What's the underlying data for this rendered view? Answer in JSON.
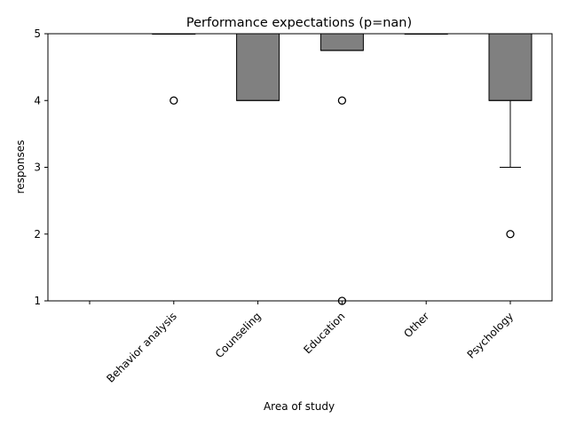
{
  "chart_data": {
    "type": "box",
    "title": "Performance expectations (p=nan)",
    "xlabel": "Area of study",
    "ylabel": "responses",
    "ylim": [
      1,
      5
    ],
    "yticks": [
      "1",
      "2",
      "3",
      "4",
      "5"
    ],
    "categories": [
      "",
      "Behavior analysis",
      "Counseling",
      "Education",
      "Other",
      "Psychology"
    ],
    "boxes": [
      null,
      {
        "q1": 5,
        "median": 5,
        "q3": 5,
        "whisker_low": 5,
        "whisker_high": 5,
        "outliers": [
          4
        ]
      },
      {
        "q1": 4,
        "median": 4,
        "q3": 5,
        "whisker_low": 4,
        "whisker_high": 5,
        "outliers": []
      },
      {
        "q1": 4.75,
        "median": 4.75,
        "q3": 5,
        "whisker_low": 4.75,
        "whisker_high": 5,
        "outliers": [
          4,
          1
        ]
      },
      {
        "q1": 5,
        "median": 5,
        "q3": 5,
        "whisker_low": 5,
        "whisker_high": 5,
        "outliers": []
      },
      {
        "q1": 4,
        "median": 4,
        "q3": 5,
        "whisker_low": 3,
        "whisker_high": 5,
        "outliers": [
          2
        ]
      }
    ],
    "box_color": "#808080",
    "grid": false,
    "legend": "none"
  }
}
